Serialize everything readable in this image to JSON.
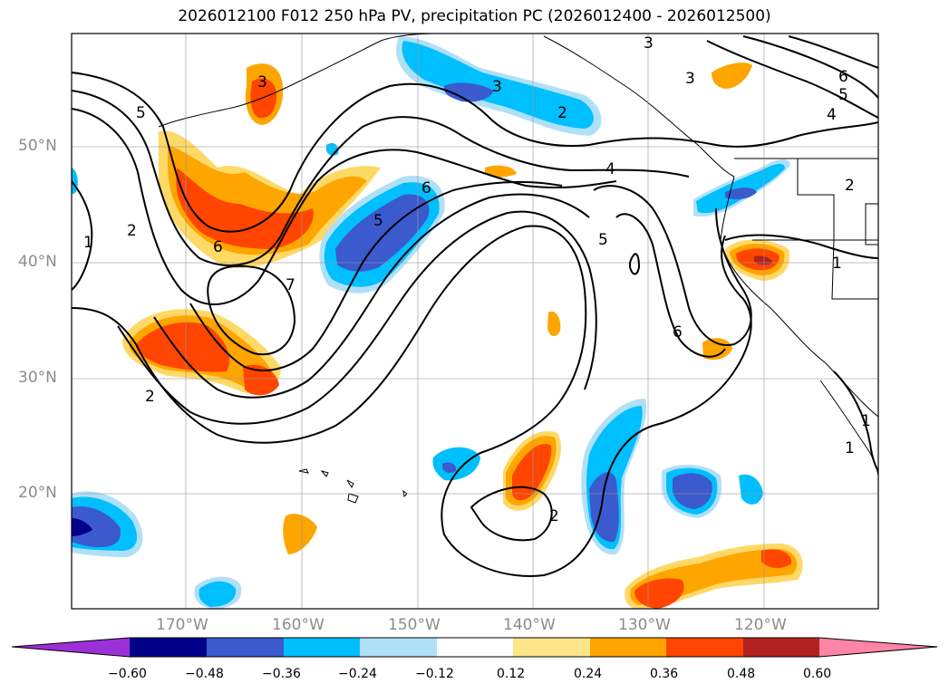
{
  "title": "2026012100 F012 250 hPa PV, precipitation PC (2026012400 - 2026012500)",
  "lat_labels": [
    "50°N",
    "40°N",
    "30°N",
    "20°N"
  ],
  "lon_labels": [
    "170°W",
    "160°W",
    "150°W",
    "140°W",
    "130°W",
    "120°W"
  ],
  "colorbar": {
    "ticks": [
      "−0.60",
      "−0.48",
      "−0.36",
      "−0.24",
      "−0.12",
      "0.12",
      "0.24",
      "0.36",
      "0.48",
      "0.60"
    ],
    "colors": [
      "#9b30d9",
      "#00008b",
      "#3a5acd",
      "#00bfff",
      "#b0e0f8",
      "#ffffff",
      "#fde68a",
      "#ffa500",
      "#ff4500",
      "#b22222",
      "#ff85a8"
    ]
  },
  "contour_labels": [
    "3",
    "3",
    "3",
    "6",
    "5",
    "4",
    "2",
    "5",
    "6",
    "1",
    "2",
    "6",
    "7",
    "5",
    "4",
    "5",
    "6",
    "1",
    "2",
    "2",
    "3",
    "2",
    "1",
    "1"
  ]
}
